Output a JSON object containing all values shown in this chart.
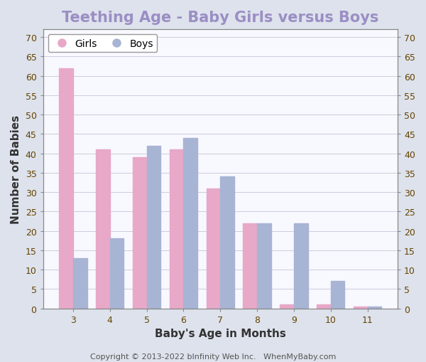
{
  "title": "Teething Age - Baby Girls versus Boys",
  "title_color": "#9b8ec4",
  "xlabel": "Baby's Age in Months",
  "ylabel": "Number of Babies",
  "categories": [
    3,
    4,
    5,
    6,
    7,
    8,
    9,
    10,
    11
  ],
  "girls_values": [
    62,
    41,
    39,
    41,
    31,
    22,
    1,
    1,
    0.5
  ],
  "boys_values": [
    13,
    18,
    42,
    44,
    34,
    22,
    22,
    7,
    0.5
  ],
  "girls_color": "#e8a8c8",
  "boys_color": "#a8b4d4",
  "ylim": [
    0,
    72
  ],
  "yticks": [
    0,
    5,
    10,
    15,
    20,
    25,
    30,
    35,
    40,
    45,
    50,
    55,
    60,
    65,
    70
  ],
  "background_color": "#dde2ec",
  "plot_background_color": "#f8f8ff",
  "copyright_text": "Copyright © 2013-2022 bInfinity Web Inc.   WhenMyBaby.com",
  "copyright_color": "#555555",
  "bar_width": 0.38,
  "legend_girls_label": "Girls",
  "legend_boys_label": "Boys",
  "grid_color": "#ccccdd",
  "tick_label_color": "#664400",
  "axis_label_color": "#333333",
  "title_fontsize": 15,
  "axis_label_fontsize": 11,
  "tick_fontsize": 9,
  "legend_fontsize": 10,
  "copyright_fontsize": 8
}
